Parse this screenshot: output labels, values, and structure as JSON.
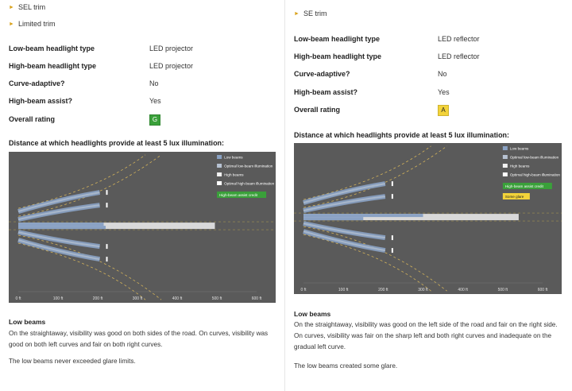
{
  "left": {
    "trims": [
      "SEL trim",
      "Limited trim"
    ],
    "specs": [
      {
        "label": "Low-beam headlight type",
        "value": "LED projector"
      },
      {
        "label": "High-beam headlight type",
        "value": "LED projector"
      },
      {
        "label": "Curve-adaptive?",
        "value": "No"
      },
      {
        "label": "High-beam assist?",
        "value": "Yes"
      }
    ],
    "rating_label": "Overall rating",
    "rating": "G",
    "rating_color": "#3aa03a",
    "distance_title": "Distance at which headlights provide at least 5 lux illumination:",
    "legend": [
      "Low beams",
      "Optimal low-beam illumination",
      "High beams",
      "Optimal high-beam illumination"
    ],
    "badges": [
      "High-beam assist credit"
    ],
    "axis_ticks": [
      "0 ft",
      "100 ft",
      "200 ft",
      "300 ft",
      "400 ft",
      "500 ft",
      "600 ft"
    ],
    "section_title": "Low beams",
    "paragraphs": [
      "On the straightaway, visibility was good on both sides of the road. On curves, visibility was good on both left curves and fair on both right curves.",
      "The low beams never exceeded glare limits."
    ],
    "chart_data": {
      "type": "bar",
      "xlabel": "",
      "xlim": [
        0,
        600
      ],
      "units": "ft",
      "low_beam_straight_left_ft": 215,
      "low_beam_straight_right_ft": 220,
      "high_beam_straight_ft": 495
    }
  },
  "right": {
    "trims": [
      "SE trim"
    ],
    "specs": [
      {
        "label": "Low-beam headlight type",
        "value": "LED reflector"
      },
      {
        "label": "High-beam headlight type",
        "value": "LED reflector"
      },
      {
        "label": "Curve-adaptive?",
        "value": "No"
      },
      {
        "label": "High-beam assist?",
        "value": "Yes"
      }
    ],
    "rating_label": "Overall rating",
    "rating": "A",
    "rating_color": "#f3d33a",
    "distance_title": "Distance at which headlights provide at least 5 lux illumination:",
    "legend": [
      "Low beams",
      "Optimal low-beam illumination",
      "High beams",
      "Optimal high-beam illumination"
    ],
    "badges": [
      "High-beam assist credit",
      "Some glare"
    ],
    "axis_ticks": [
      "0 ft",
      "100 ft",
      "200 ft",
      "300 ft",
      "400 ft",
      "500 ft",
      "600 ft"
    ],
    "section_title": "Low beams",
    "paragraphs": [
      "On the straightaway, visibility was good on the left side of the road and fair on the right side. On curves, visibility was fair on the sharp left and both right curves and inadequate on the gradual left curve.",
      "The low beams created some glare."
    ],
    "chart_data": {
      "type": "bar",
      "xlabel": "",
      "xlim": [
        0,
        600
      ],
      "units": "ft",
      "low_beam_straight_left_ft": 300,
      "low_beam_straight_right_ft": 150,
      "high_beam_straight_ft": 540
    }
  }
}
